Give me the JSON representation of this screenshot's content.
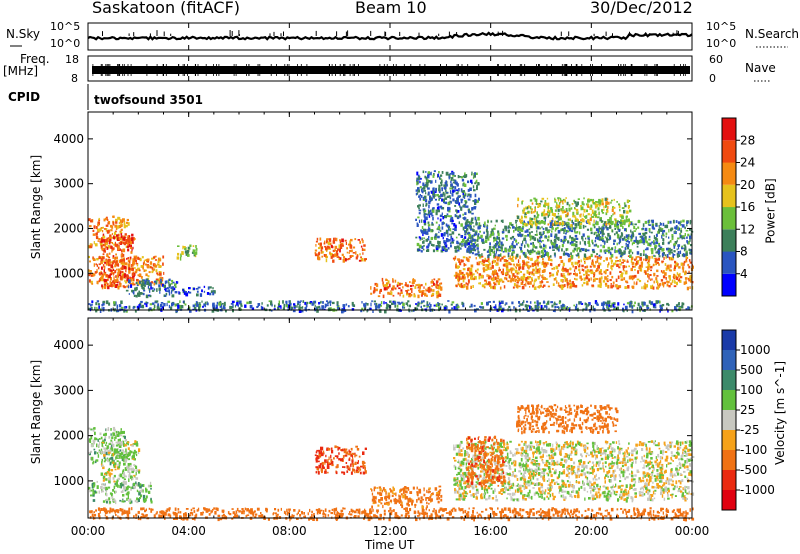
{
  "header": {
    "station": "Saskatoon (fitACF)",
    "beam": "Beam 10",
    "date": "30/Dec/2012"
  },
  "noise_panel": {
    "left_label": "N.Sky",
    "right_label": "N.Search",
    "tick_top": "10^5",
    "tick_bottom": "10^0"
  },
  "freq_panel": {
    "left_label_line1": "Freq.",
    "left_label_line2": "[MHz]",
    "left_tick_top": "18",
    "left_tick_bottom": "8",
    "right_label": "Nave",
    "right_tick_top": "60",
    "right_tick_bottom": "0"
  },
  "cpid_panel": {
    "label": "CPID",
    "program": "twofsound 3501"
  },
  "axes": {
    "ylabel": "Slant Range [km]",
    "xlabel": "Time UT",
    "y_ticks": [
      "1000",
      "2000",
      "3000",
      "4000"
    ],
    "x_ticks": [
      "00:00",
      "04:00",
      "08:00",
      "12:00",
      "16:00",
      "20:00",
      "00:00"
    ]
  },
  "power_colorbar": {
    "label": "Power [dB]",
    "ticks": [
      "4",
      "8",
      "12",
      "16",
      "20",
      "24",
      "28"
    ],
    "colors": [
      "#0000ff",
      "#2a55c0",
      "#3c7f5a",
      "#6bbf3a",
      "#e6c21c",
      "#f58a12",
      "#f04a10",
      "#e31010"
    ]
  },
  "velocity_colorbar": {
    "label": "Velocity [m s^-1]",
    "ticks": [
      "1000",
      "500",
      "100",
      "25",
      "-25",
      "-100",
      "-500",
      "-1000"
    ],
    "colors": [
      "#1a3aa8",
      "#2f62b8",
      "#3c8a6a",
      "#62c03c",
      "#c8c8c0",
      "#f5a21a",
      "#f07214",
      "#ea2a10",
      "#e00010"
    ]
  },
  "chart_data": [
    {
      "type": "heatmap",
      "title": "Power",
      "xlabel": "Time UT",
      "ylabel": "Slant Range [km]",
      "xlim": [
        0,
        24
      ],
      "ylim": [
        180,
        4600
      ],
      "colorbar_label": "Power [dB]",
      "regions": [
        {
          "t": [
            0.0,
            1.6
          ],
          "r": [
            1600,
            2300
          ],
          "value": 22
        },
        {
          "t": [
            0.0,
            3.0
          ],
          "r": [
            750,
            1400
          ],
          "value": 22
        },
        {
          "t": [
            0.5,
            1.8
          ],
          "r": [
            700,
            1900
          ],
          "value": 26
        },
        {
          "t": [
            1.5,
            3.5
          ],
          "r": [
            500,
            900
          ],
          "value": 8
        },
        {
          "t": [
            3.5,
            5.0
          ],
          "r": [
            550,
            720
          ],
          "value": 6
        },
        {
          "t": [
            3.5,
            4.3
          ],
          "r": [
            1350,
            1650
          ],
          "value": 14
        },
        {
          "t": [
            9.0,
            11.0
          ],
          "r": [
            1300,
            1800
          ],
          "value": 24
        },
        {
          "t": [
            11.2,
            14.0
          ],
          "r": [
            500,
            900
          ],
          "value": 24
        },
        {
          "t": [
            14.5,
            24.0
          ],
          "r": [
            700,
            1400
          ],
          "value": 22
        },
        {
          "t": [
            15.0,
            24.0
          ],
          "r": [
            1400,
            2200
          ],
          "value": 10
        },
        {
          "t": [
            17.0,
            21.5
          ],
          "r": [
            2100,
            2700
          ],
          "value": 16
        },
        {
          "t": [
            13.0,
            15.5
          ],
          "r": [
            1500,
            3300
          ],
          "value": 8
        },
        {
          "t": [
            0.0,
            24.0
          ],
          "r": [
            180,
            400
          ],
          "value": 8
        }
      ]
    },
    {
      "type": "heatmap",
      "title": "Velocity",
      "xlabel": "Time UT",
      "ylabel": "Slant Range [km]",
      "xlim": [
        0,
        24
      ],
      "ylim": [
        180,
        4600
      ],
      "colorbar_label": "Velocity [m s^-1]",
      "regions": [
        {
          "t": [
            0.0,
            1.6
          ],
          "r": [
            1400,
            2200
          ],
          "value": 50
        },
        {
          "t": [
            0.0,
            2.5
          ],
          "r": [
            550,
            1000
          ],
          "value": 60
        },
        {
          "t": [
            0.5,
            2.0
          ],
          "r": [
            1000,
            1900
          ],
          "value": 20
        },
        {
          "t": [
            9.0,
            11.0
          ],
          "r": [
            1200,
            1800
          ],
          "value": -600
        },
        {
          "t": [
            11.2,
            14.0
          ],
          "r": [
            450,
            900
          ],
          "value": -150
        },
        {
          "t": [
            14.5,
            24.0
          ],
          "r": [
            600,
            1900
          ],
          "value": 0
        },
        {
          "t": [
            15.0,
            16.5
          ],
          "r": [
            900,
            2000
          ],
          "value": -400
        },
        {
          "t": [
            17.0,
            21.0
          ],
          "r": [
            2100,
            2700
          ],
          "value": -300
        },
        {
          "t": [
            0.0,
            24.0
          ],
          "r": [
            180,
            420
          ],
          "value": -200
        }
      ]
    }
  ]
}
